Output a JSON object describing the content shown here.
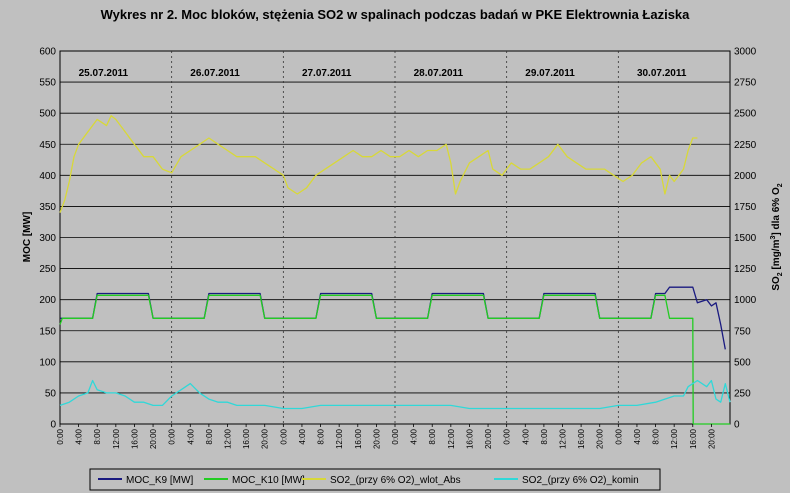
{
  "chart_data": {
    "type": "line",
    "title": "Wykres nr 2. Moc bloków, stężenia SO2 w spalinach podczas badań w PKE Elektrownia Łaziska",
    "ylabel_left": "MOC [MW]",
    "ylabel_right": "SO2 [mg/m3] dla 6% O2",
    "ylabel_right_parts": {
      "main": "SO",
      "sub1": "2",
      "mid": " [mg/m",
      "sup": "3",
      "tail": "] dla 6% O",
      "sub2": "2"
    },
    "ylim_left": [
      0,
      600
    ],
    "ylim_right": [
      0,
      3000
    ],
    "yticks_left": [
      "0",
      "50",
      "100",
      "150",
      "200",
      "250",
      "300",
      "350",
      "400",
      "450",
      "500",
      "550",
      "600"
    ],
    "yticks_right": [
      "0",
      "250",
      "500",
      "750",
      "1000",
      "1250",
      "1500",
      "1750",
      "2000",
      "2250",
      "2500",
      "2750",
      "3000"
    ],
    "x_hours_total": 144,
    "time_ticks": [
      "0:00",
      "4:00",
      "8:00",
      "12:00",
      "16:00",
      "20:00"
    ],
    "days": [
      "25.07.2011",
      "26.07.2011",
      "27.07.2011",
      "28.07.2011",
      "29.07.2011",
      "30.07.2011"
    ],
    "grid": "horizontal",
    "legend_position": "bottom",
    "colors": {
      "MOC_K9": "#1a1a80",
      "MOC_K10": "#22cc22",
      "SO2_wlot": "#d8d838",
      "SO2_komin": "#30d8d8"
    },
    "series": [
      {
        "name": "MOC_K9 [MW]",
        "axis": "left",
        "color_key": "MOC_K9",
        "points": [
          [
            0,
            170
          ],
          [
            7,
            170
          ],
          [
            8,
            210
          ],
          [
            19,
            210
          ],
          [
            20,
            170
          ],
          [
            31,
            170
          ],
          [
            32,
            210
          ],
          [
            43,
            210
          ],
          [
            44,
            170
          ],
          [
            55,
            170
          ],
          [
            56,
            210
          ],
          [
            67,
            210
          ],
          [
            68,
            170
          ],
          [
            79,
            170
          ],
          [
            80,
            210
          ],
          [
            91,
            210
          ],
          [
            92,
            170
          ],
          [
            103,
            170
          ],
          [
            104,
            210
          ],
          [
            115,
            210
          ],
          [
            116,
            170
          ],
          [
            127,
            170
          ],
          [
            128,
            210
          ],
          [
            130,
            210
          ],
          [
            131,
            220
          ],
          [
            136,
            220
          ],
          [
            137,
            195
          ],
          [
            139,
            200
          ],
          [
            140,
            190
          ],
          [
            141,
            195
          ],
          [
            142,
            160
          ],
          [
            143,
            120
          ]
        ]
      },
      {
        "name": "MOC_K10 [MW]",
        "axis": "left",
        "color_key": "MOC_K10",
        "points": [
          [
            0,
            160
          ],
          [
            0.5,
            170
          ],
          [
            7,
            170
          ],
          [
            8,
            207
          ],
          [
            19,
            207
          ],
          [
            20,
            170
          ],
          [
            31,
            170
          ],
          [
            32,
            207
          ],
          [
            43,
            207
          ],
          [
            44,
            170
          ],
          [
            55,
            170
          ],
          [
            56,
            207
          ],
          [
            67,
            207
          ],
          [
            68,
            170
          ],
          [
            79,
            170
          ],
          [
            80,
            207
          ],
          [
            91,
            207
          ],
          [
            92,
            170
          ],
          [
            103,
            170
          ],
          [
            104,
            207
          ],
          [
            115,
            207
          ],
          [
            116,
            170
          ],
          [
            127,
            170
          ],
          [
            128,
            207
          ],
          [
            130,
            207
          ],
          [
            131,
            170
          ],
          [
            136,
            170
          ],
          [
            136.1,
            0
          ],
          [
            144,
            0
          ]
        ]
      },
      {
        "name": "SO2_(przy 6% O2)_wlot_Abs",
        "axis": "right",
        "color_key": "SO2_wlot",
        "points": [
          [
            0,
            1700
          ],
          [
            1,
            1800
          ],
          [
            2,
            1950
          ],
          [
            3,
            2150
          ],
          [
            4,
            2250
          ],
          [
            6,
            2350
          ],
          [
            8,
            2450
          ],
          [
            10,
            2400
          ],
          [
            11,
            2480
          ],
          [
            12,
            2450
          ],
          [
            13,
            2400
          ],
          [
            14,
            2350
          ],
          [
            16,
            2250
          ],
          [
            18,
            2150
          ],
          [
            20,
            2150
          ],
          [
            22,
            2050
          ],
          [
            24,
            2020
          ],
          [
            26,
            2150
          ],
          [
            28,
            2200
          ],
          [
            30,
            2250
          ],
          [
            32,
            2300
          ],
          [
            34,
            2250
          ],
          [
            36,
            2200
          ],
          [
            38,
            2150
          ],
          [
            40,
            2150
          ],
          [
            42,
            2150
          ],
          [
            44,
            2100
          ],
          [
            46,
            2050
          ],
          [
            48,
            2000
          ],
          [
            49,
            1900
          ],
          [
            51,
            1850
          ],
          [
            53,
            1900
          ],
          [
            55,
            2000
          ],
          [
            57,
            2050
          ],
          [
            59,
            2100
          ],
          [
            61,
            2150
          ],
          [
            63,
            2200
          ],
          [
            65,
            2150
          ],
          [
            67,
            2150
          ],
          [
            69,
            2200
          ],
          [
            71,
            2150
          ],
          [
            73,
            2150
          ],
          [
            75,
            2200
          ],
          [
            77,
            2150
          ],
          [
            79,
            2200
          ],
          [
            81,
            2200
          ],
          [
            83,
            2250
          ],
          [
            84,
            2100
          ],
          [
            85,
            1850
          ],
          [
            86,
            1950
          ],
          [
            88,
            2100
          ],
          [
            90,
            2150
          ],
          [
            92,
            2200
          ],
          [
            93,
            2050
          ],
          [
            95,
            2000
          ],
          [
            97,
            2100
          ],
          [
            99,
            2050
          ],
          [
            101,
            2050
          ],
          [
            103,
            2100
          ],
          [
            105,
            2150
          ],
          [
            107,
            2250
          ],
          [
            109,
            2150
          ],
          [
            111,
            2100
          ],
          [
            113,
            2050
          ],
          [
            115,
            2050
          ],
          [
            117,
            2050
          ],
          [
            119,
            2000
          ],
          [
            121,
            1950
          ],
          [
            123,
            2000
          ],
          [
            125,
            2100
          ],
          [
            127,
            2150
          ],
          [
            129,
            2050
          ],
          [
            130,
            1850
          ],
          [
            131,
            2000
          ],
          [
            132,
            1950
          ],
          [
            134,
            2050
          ],
          [
            135,
            2200
          ],
          [
            136,
            2300
          ],
          [
            137,
            2300
          ]
        ]
      },
      {
        "name": "SO2_(przy 6% O2)_komin",
        "axis": "right",
        "color_key": "SO2_komin",
        "points": [
          [
            0,
            150
          ],
          [
            2,
            175
          ],
          [
            4,
            225
          ],
          [
            6,
            250
          ],
          [
            7,
            350
          ],
          [
            8,
            275
          ],
          [
            10,
            250
          ],
          [
            12,
            250
          ],
          [
            14,
            225
          ],
          [
            16,
            175
          ],
          [
            18,
            175
          ],
          [
            20,
            150
          ],
          [
            22,
            150
          ],
          [
            24,
            225
          ],
          [
            26,
            275
          ],
          [
            28,
            325
          ],
          [
            30,
            250
          ],
          [
            32,
            200
          ],
          [
            34,
            175
          ],
          [
            36,
            175
          ],
          [
            38,
            150
          ],
          [
            40,
            150
          ],
          [
            44,
            150
          ],
          [
            48,
            125
          ],
          [
            52,
            125
          ],
          [
            56,
            150
          ],
          [
            60,
            150
          ],
          [
            64,
            150
          ],
          [
            68,
            150
          ],
          [
            72,
            150
          ],
          [
            80,
            150
          ],
          [
            84,
            150
          ],
          [
            88,
            125
          ],
          [
            92,
            125
          ],
          [
            96,
            125
          ],
          [
            100,
            125
          ],
          [
            104,
            125
          ],
          [
            108,
            125
          ],
          [
            112,
            125
          ],
          [
            116,
            125
          ],
          [
            120,
            150
          ],
          [
            124,
            150
          ],
          [
            128,
            175
          ],
          [
            130,
            200
          ],
          [
            132,
            225
          ],
          [
            134,
            225
          ],
          [
            135,
            300
          ],
          [
            136,
            325
          ],
          [
            137,
            350
          ],
          [
            139,
            300
          ],
          [
            140,
            350
          ],
          [
            141,
            200
          ],
          [
            142,
            175
          ],
          [
            143,
            325
          ],
          [
            144,
            175
          ]
        ]
      }
    ]
  }
}
